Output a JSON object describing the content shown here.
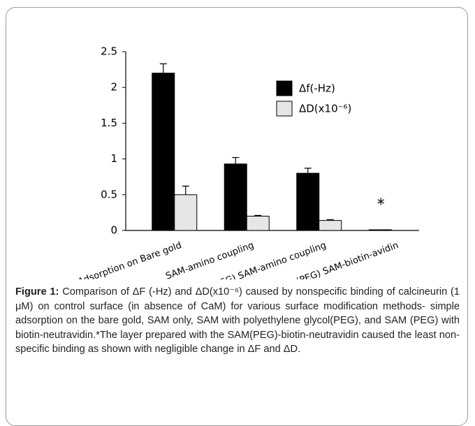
{
  "chart_data": {
    "type": "bar",
    "categories": [
      "Adsorption on Bare gold",
      "SAM-amino coupling",
      "(PEG) SAM-amino coupling",
      "(PEG) SAM-biotin-avidin"
    ],
    "series": [
      {
        "name": "Δf(-Hz)",
        "color": "#000000",
        "values": [
          2.2,
          0.93,
          0.8,
          0.01
        ],
        "errors": [
          0.13,
          0.09,
          0.07,
          0
        ]
      },
      {
        "name": "ΔD(x10⁻⁶)",
        "color": "#e6e6e6",
        "values": [
          0.5,
          0.2,
          0.14,
          0
        ],
        "errors": [
          0.12,
          0.01,
          0.01,
          0
        ]
      }
    ],
    "ylim": [
      0,
      2.5
    ],
    "yticks": [
      0,
      0.5,
      1,
      1.5,
      2,
      2.5
    ],
    "annotations": [
      "*"
    ],
    "legend": "upper right"
  },
  "caption": {
    "label": "Figure 1:",
    "text": " Comparison of ΔF (-Hz) and ΔD(x10⁻⁶) caused by nonspecific binding of calcineurin (1 μM) on control surface (in absence of CaM) for various surface modification methods- simple adsorption on the bare gold, SAM only, SAM with polyethylene glycol(PEG), and SAM (PEG) with biotin-neutravidin.*The layer prepared with the SAM(PEG)-biotin-neutravidin caused the least non-specific binding as shown with negligible change in ΔF and ΔD."
  }
}
